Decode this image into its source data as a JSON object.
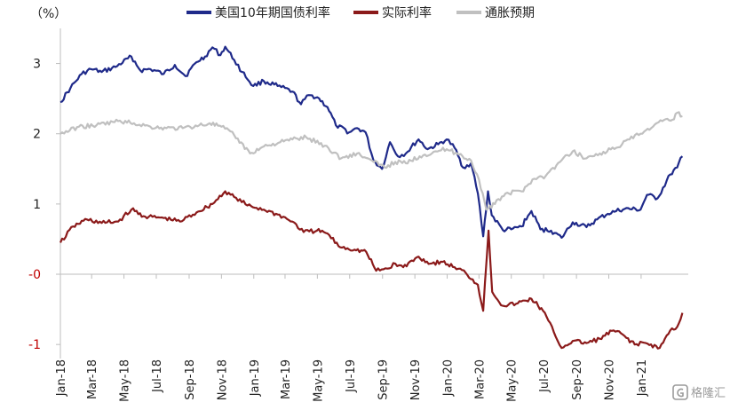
{
  "chart_data": {
    "type": "line",
    "unit_label": "（%）",
    "ylim": [
      -1.2,
      3.5
    ],
    "yticks": [
      {
        "value": 3,
        "label": "3"
      },
      {
        "value": 2,
        "label": "2"
      },
      {
        "value": 1,
        "label": "1"
      },
      {
        "value": 0,
        "label": "-0"
      },
      {
        "value": -1,
        "label": "-1"
      }
    ],
    "xlim": [
      "2018-01-01",
      "2021-03-31"
    ],
    "xticks": [
      {
        "date": "2018-01-01",
        "label": "Jan-18"
      },
      {
        "date": "2018-03-01",
        "label": "Mar-18"
      },
      {
        "date": "2018-05-01",
        "label": "May-18"
      },
      {
        "date": "2018-07-01",
        "label": "Jul-18"
      },
      {
        "date": "2018-09-01",
        "label": "Sep-18"
      },
      {
        "date": "2018-11-01",
        "label": "Nov-18"
      },
      {
        "date": "2019-01-01",
        "label": "Jan-19"
      },
      {
        "date": "2019-03-01",
        "label": "Mar-19"
      },
      {
        "date": "2019-05-01",
        "label": "May-19"
      },
      {
        "date": "2019-07-01",
        "label": "Jul-19"
      },
      {
        "date": "2019-09-01",
        "label": "Sep-19"
      },
      {
        "date": "2019-11-01",
        "label": "Nov-19"
      },
      {
        "date": "2020-01-01",
        "label": "Jan-20"
      },
      {
        "date": "2020-03-01",
        "label": "Mar-20"
      },
      {
        "date": "2020-05-01",
        "label": "May-20"
      },
      {
        "date": "2020-07-01",
        "label": "Jul-20"
      },
      {
        "date": "2020-09-01",
        "label": "Sep-20"
      },
      {
        "date": "2020-11-01",
        "label": "Nov-20"
      },
      {
        "date": "2021-01-01",
        "label": "Jan-21"
      }
    ],
    "legend_position": "top",
    "grid": false,
    "series": [
      {
        "name": "美国10年期国债利率",
        "color": "#1f2a8a",
        "points": [
          [
            "2018-01-01",
            2.45
          ],
          [
            "2018-01-20",
            2.65
          ],
          [
            "2018-02-10",
            2.85
          ],
          [
            "2018-02-28",
            2.92
          ],
          [
            "2018-03-20",
            2.88
          ],
          [
            "2018-04-15",
            2.95
          ],
          [
            "2018-05-15",
            3.1
          ],
          [
            "2018-06-01",
            2.9
          ],
          [
            "2018-06-20",
            2.92
          ],
          [
            "2018-07-15",
            2.85
          ],
          [
            "2018-08-05",
            2.98
          ],
          [
            "2018-08-25",
            2.82
          ],
          [
            "2018-09-15",
            3.02
          ],
          [
            "2018-10-01",
            3.1
          ],
          [
            "2018-10-15",
            3.23
          ],
          [
            "2018-10-30",
            3.12
          ],
          [
            "2018-11-08",
            3.24
          ],
          [
            "2018-11-25",
            3.05
          ],
          [
            "2018-12-10",
            2.88
          ],
          [
            "2018-12-31",
            2.68
          ],
          [
            "2019-01-20",
            2.75
          ],
          [
            "2019-02-15",
            2.68
          ],
          [
            "2019-03-15",
            2.6
          ],
          [
            "2019-03-31",
            2.42
          ],
          [
            "2019-04-15",
            2.55
          ],
          [
            "2019-05-01",
            2.52
          ],
          [
            "2019-05-20",
            2.38
          ],
          [
            "2019-06-05",
            2.12
          ],
          [
            "2019-06-30",
            2.02
          ],
          [
            "2019-07-15",
            2.08
          ],
          [
            "2019-07-31",
            2.02
          ],
          [
            "2019-08-15",
            1.62
          ],
          [
            "2019-08-31",
            1.5
          ],
          [
            "2019-09-15",
            1.88
          ],
          [
            "2019-09-30",
            1.68
          ],
          [
            "2019-10-15",
            1.72
          ],
          [
            "2019-11-08",
            1.92
          ],
          [
            "2019-11-25",
            1.78
          ],
          [
            "2019-12-15",
            1.85
          ],
          [
            "2019-12-31",
            1.92
          ],
          [
            "2020-01-15",
            1.8
          ],
          [
            "2020-01-31",
            1.52
          ],
          [
            "2020-02-15",
            1.58
          ],
          [
            "2020-02-28",
            1.15
          ],
          [
            "2020-03-09",
            0.54
          ],
          [
            "2020-03-18",
            1.18
          ],
          [
            "2020-03-25",
            0.84
          ],
          [
            "2020-04-15",
            0.63
          ],
          [
            "2020-05-01",
            0.64
          ],
          [
            "2020-05-20",
            0.68
          ],
          [
            "2020-06-08",
            0.9
          ],
          [
            "2020-06-25",
            0.64
          ],
          [
            "2020-07-15",
            0.62
          ],
          [
            "2020-08-04",
            0.52
          ],
          [
            "2020-08-25",
            0.74
          ],
          [
            "2020-09-20",
            0.67
          ],
          [
            "2020-10-10",
            0.78
          ],
          [
            "2020-10-30",
            0.86
          ],
          [
            "2020-11-15",
            0.9
          ],
          [
            "2020-12-01",
            0.93
          ],
          [
            "2020-12-31",
            0.92
          ],
          [
            "2021-01-12",
            1.13
          ],
          [
            "2021-02-01",
            1.08
          ],
          [
            "2021-02-25",
            1.42
          ],
          [
            "2021-03-10",
            1.52
          ],
          [
            "2021-03-20",
            1.68
          ]
        ]
      },
      {
        "name": "实际利率",
        "color": "#8b1a1a",
        "points": [
          [
            "2018-01-01",
            0.45
          ],
          [
            "2018-01-25",
            0.68
          ],
          [
            "2018-02-20",
            0.78
          ],
          [
            "2018-03-20",
            0.73
          ],
          [
            "2018-04-20",
            0.75
          ],
          [
            "2018-05-15",
            0.92
          ],
          [
            "2018-06-10",
            0.82
          ],
          [
            "2018-07-15",
            0.8
          ],
          [
            "2018-08-15",
            0.75
          ],
          [
            "2018-09-15",
            0.88
          ],
          [
            "2018-10-15",
            1.0
          ],
          [
            "2018-11-08",
            1.18
          ],
          [
            "2018-11-25",
            1.1
          ],
          [
            "2018-12-20",
            0.98
          ],
          [
            "2019-01-20",
            0.92
          ],
          [
            "2019-02-15",
            0.85
          ],
          [
            "2019-03-15",
            0.75
          ],
          [
            "2019-04-05",
            0.6
          ],
          [
            "2019-04-30",
            0.62
          ],
          [
            "2019-05-20",
            0.58
          ],
          [
            "2019-06-10",
            0.4
          ],
          [
            "2019-07-10",
            0.35
          ],
          [
            "2019-08-01",
            0.32
          ],
          [
            "2019-08-20",
            0.05
          ],
          [
            "2019-09-10",
            0.08
          ],
          [
            "2019-09-25",
            0.15
          ],
          [
            "2019-10-10",
            0.1
          ],
          [
            "2019-11-08",
            0.25
          ],
          [
            "2019-11-30",
            0.15
          ],
          [
            "2019-12-20",
            0.18
          ],
          [
            "2020-01-15",
            0.1
          ],
          [
            "2020-02-05",
            0.02
          ],
          [
            "2020-02-28",
            -0.15
          ],
          [
            "2020-03-09",
            -0.52
          ],
          [
            "2020-03-19",
            0.62
          ],
          [
            "2020-03-26",
            -0.25
          ],
          [
            "2020-04-15",
            -0.45
          ],
          [
            "2020-05-10",
            -0.42
          ],
          [
            "2020-06-08",
            -0.35
          ],
          [
            "2020-06-30",
            -0.52
          ],
          [
            "2020-07-20",
            -0.82
          ],
          [
            "2020-08-04",
            -1.05
          ],
          [
            "2020-08-25",
            -0.95
          ],
          [
            "2020-09-20",
            -0.98
          ],
          [
            "2020-10-15",
            -0.92
          ],
          [
            "2020-11-10",
            -0.8
          ],
          [
            "2020-12-01",
            -0.88
          ],
          [
            "2020-12-20",
            -1.0
          ],
          [
            "2021-01-10",
            -0.98
          ],
          [
            "2021-02-05",
            -1.05
          ],
          [
            "2021-02-25",
            -0.8
          ],
          [
            "2021-03-10",
            -0.75
          ],
          [
            "2021-03-20",
            -0.55
          ]
        ]
      },
      {
        "name": "通胀预期",
        "color": "#c0c0c0",
        "points": [
          [
            "2018-01-01",
            2.0
          ],
          [
            "2018-02-05",
            2.1
          ],
          [
            "2018-03-10",
            2.12
          ],
          [
            "2018-04-20",
            2.18
          ],
          [
            "2018-05-20",
            2.15
          ],
          [
            "2018-06-20",
            2.1
          ],
          [
            "2018-07-20",
            2.08
          ],
          [
            "2018-08-20",
            2.08
          ],
          [
            "2018-09-20",
            2.12
          ],
          [
            "2018-10-10",
            2.15
          ],
          [
            "2018-11-01",
            2.1
          ],
          [
            "2018-11-25",
            1.98
          ],
          [
            "2018-12-25",
            1.72
          ],
          [
            "2019-01-20",
            1.82
          ],
          [
            "2019-02-20",
            1.88
          ],
          [
            "2019-03-15",
            1.92
          ],
          [
            "2019-04-10",
            1.95
          ],
          [
            "2019-05-15",
            1.83
          ],
          [
            "2019-06-15",
            1.65
          ],
          [
            "2019-07-15",
            1.72
          ],
          [
            "2019-08-15",
            1.6
          ],
          [
            "2019-09-05",
            1.52
          ],
          [
            "2019-09-25",
            1.6
          ],
          [
            "2019-10-15",
            1.58
          ],
          [
            "2019-11-10",
            1.68
          ],
          [
            "2019-12-10",
            1.75
          ],
          [
            "2019-12-31",
            1.78
          ],
          [
            "2020-01-20",
            1.72
          ],
          [
            "2020-02-15",
            1.62
          ],
          [
            "2020-03-01",
            1.35
          ],
          [
            "2020-03-15",
            0.92
          ],
          [
            "2020-03-31",
            1.0
          ],
          [
            "2020-04-20",
            1.15
          ],
          [
            "2020-05-20",
            1.18
          ],
          [
            "2020-06-10",
            1.35
          ],
          [
            "2020-07-05",
            1.4
          ],
          [
            "2020-08-01",
            1.6
          ],
          [
            "2020-08-25",
            1.75
          ],
          [
            "2020-09-20",
            1.65
          ],
          [
            "2020-10-15",
            1.72
          ],
          [
            "2020-11-15",
            1.8
          ],
          [
            "2020-12-10",
            1.92
          ],
          [
            "2020-12-31",
            2.0
          ],
          [
            "2021-01-20",
            2.08
          ],
          [
            "2021-02-10",
            2.18
          ],
          [
            "2021-03-01",
            2.2
          ],
          [
            "2021-03-10",
            2.3
          ],
          [
            "2021-03-20",
            2.25
          ]
        ]
      }
    ]
  },
  "watermark": {
    "icon": "gelonghui-logo-icon",
    "text": "格隆汇"
  }
}
